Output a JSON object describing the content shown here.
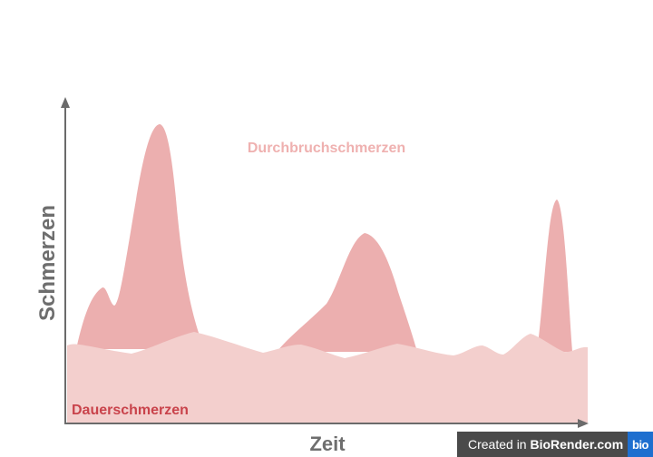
{
  "labels": {
    "peak_label": "Durchbruchschmerzen",
    "baseline_label": "Dauerschmerzen",
    "y_axis": "Schmerzen",
    "x_axis": "Zeit"
  },
  "colors": {
    "peaks": "#ecafaf",
    "baseline": "#f3cfcd",
    "peak_text": "#efb1b0",
    "baseline_text": "#c9434b",
    "axis": "#6b6b6b",
    "axis_text": "#6e6e6e"
  },
  "badge": {
    "prefix": "Created in ",
    "brand": "BioRender.com",
    "logo": "bio"
  }
}
